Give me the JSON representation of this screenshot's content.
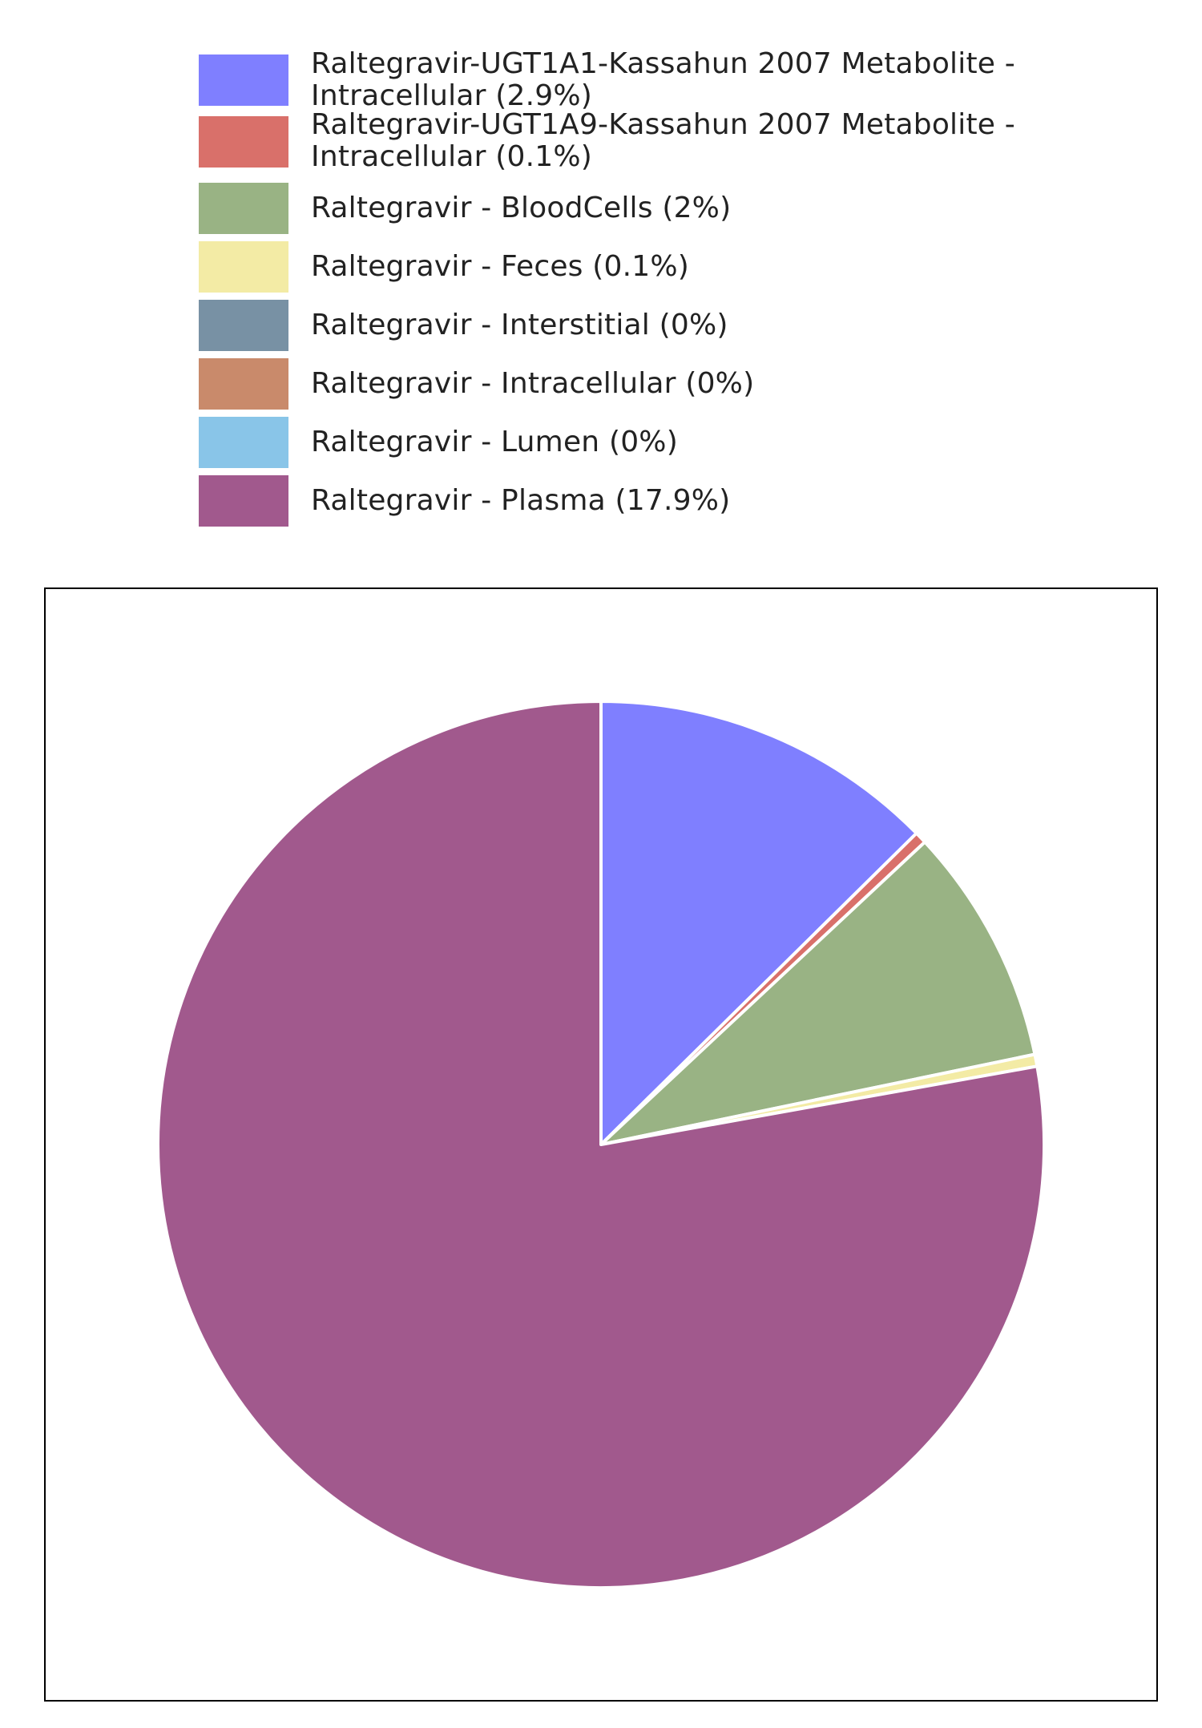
{
  "chart_data": {
    "type": "pie",
    "title": "",
    "legend_placement": "top",
    "start_angle": "12 o'clock",
    "direction": "clockwise",
    "slices": [
      {
        "label": "Raltegravir-UGT1A1-Kassahun 2007 Metabolite - Intracellular (2.9%)",
        "value": 2.9,
        "color": "#7f7fff"
      },
      {
        "label": "Raltegravir-UGT1A9-Kassahun 2007 Metabolite - Intracellular (0.1%)",
        "value": 0.1,
        "color": "#d9706a"
      },
      {
        "label": "Raltegravir - BloodCells (2%)",
        "value": 2.0,
        "color": "#99b384"
      },
      {
        "label": "Raltegravir - Feces (0.1%)",
        "value": 0.1,
        "color": "#f3eba5"
      },
      {
        "label": "Raltegravir - Interstitial (0%)",
        "value": 0.0,
        "color": "#7891a4"
      },
      {
        "label": "Raltegravir - Intracellular (0%)",
        "value": 0.0,
        "color": "#c98a6b"
      },
      {
        "label": "Raltegravir - Lumen (0%)",
        "value": 0.0,
        "color": "#89c5e8"
      },
      {
        "label": "Raltegravir - Plasma (17.9%)",
        "value": 17.9,
        "color": "#a1598d"
      }
    ]
  }
}
